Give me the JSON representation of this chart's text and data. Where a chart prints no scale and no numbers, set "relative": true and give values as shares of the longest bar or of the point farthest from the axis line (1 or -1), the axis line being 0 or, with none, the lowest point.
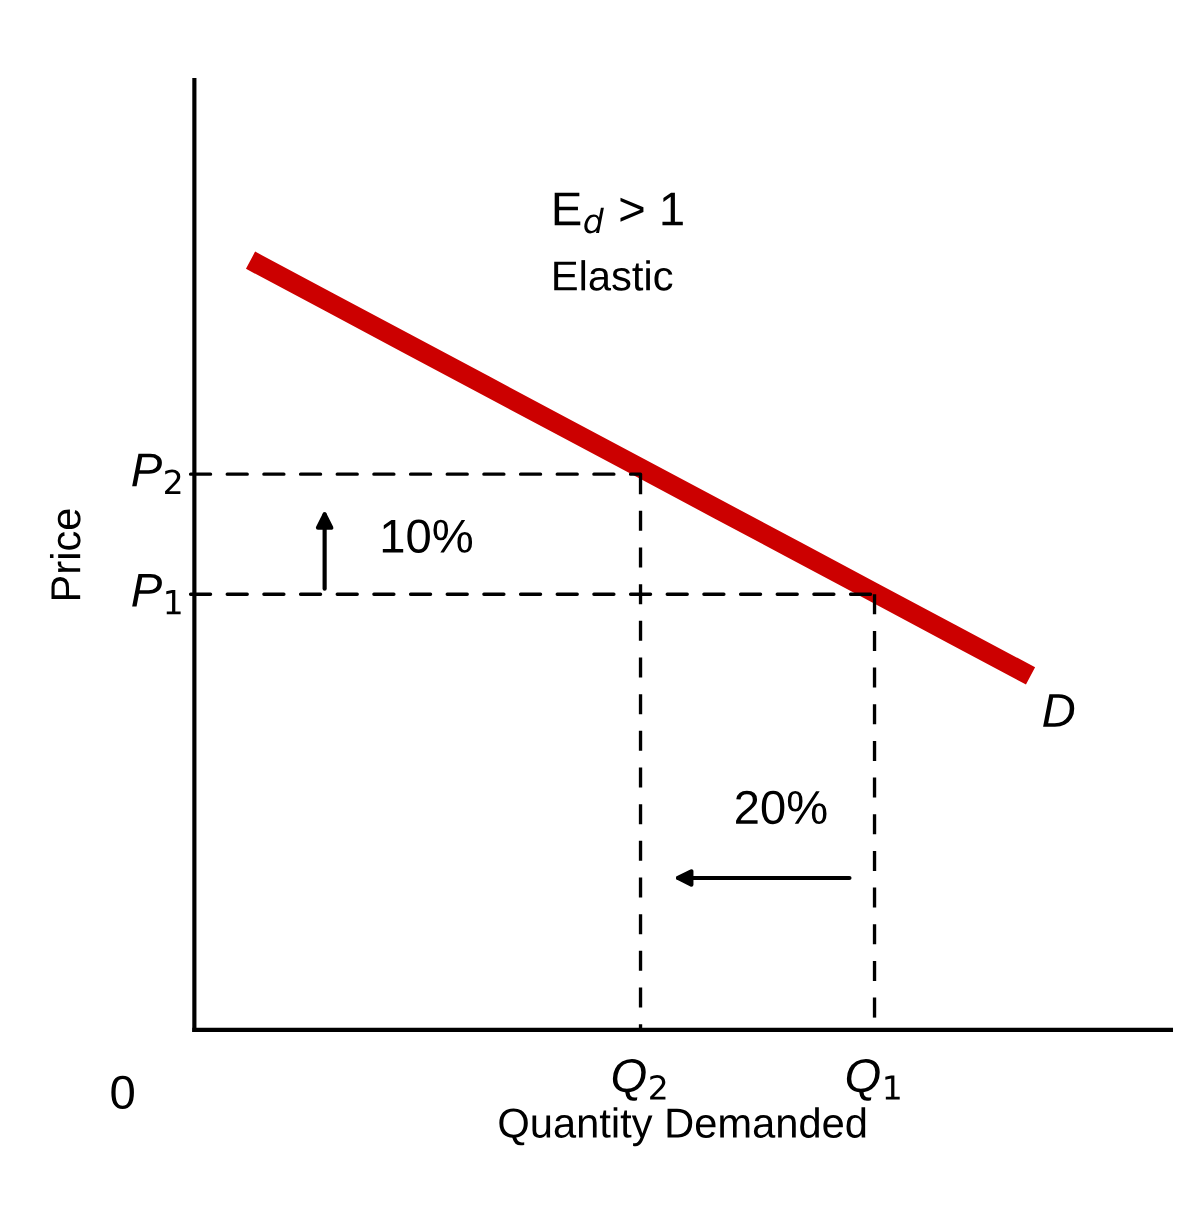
{
  "chart_data": {
    "type": "line",
    "xlabel": "Quantity Demanded",
    "ylabel": "Price",
    "relative": true,
    "categories": [
      null,
      null,
      null,
      null,
      null,
      "Q$_{2}$",
      null,
      null,
      "Q$_{1}$",
      null,
      null
    ],
    "series": [
      {
        "color": "#cc0000",
        "values": [
          1,
          0.946,
          0.892,
          0.838,
          0.784,
          0.73,
          0.676,
          0.622,
          0.568,
          0.514,
          0.46
        ],
        "line_style": "solid"
      }
    ],
    "annotations": [
      "E$_{d}$ > 1",
      "Elastic",
      "D",
      "10%",
      "20%",
      "0",
      {
        "text": "P$_{2}$",
        "x": "Q$_{2}$",
        "y": 0.722
      },
      {
        "text": "P$_{1}$",
        "x": "Q$_{1}$",
        "y": 0.566
      }
    ]
  }
}
